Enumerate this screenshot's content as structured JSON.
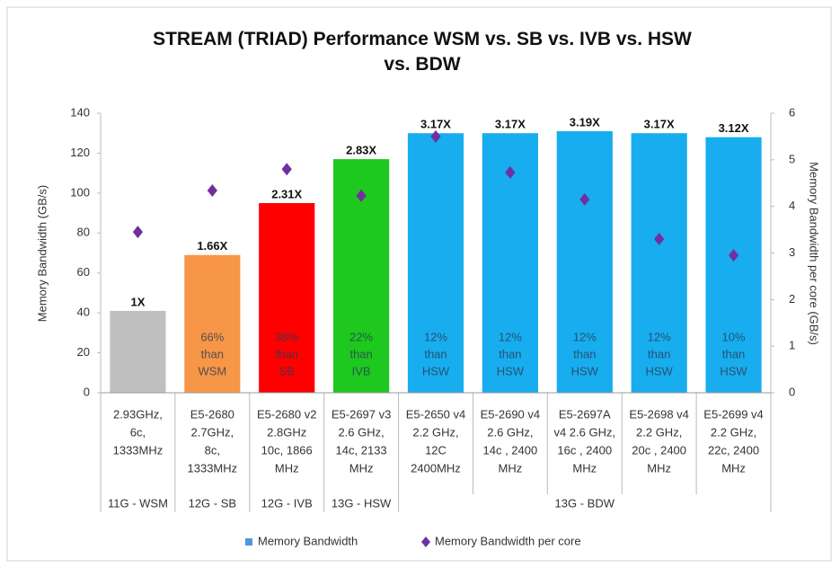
{
  "chart_data": {
    "type": "bar",
    "title": "STREAM (TRIAD) Performance WSM vs. SB vs. IVB vs. HSW vs. BDW",
    "y_label": "Memory Bandwidth (GB/s)",
    "y2_label": "Memory Bandwidth per core (GB/s)",
    "categories": [
      [
        "2.93GHz,",
        "6c,",
        "1333MHz"
      ],
      [
        "E5-2680",
        "2.7GHz,",
        "8c,",
        "1333MHz"
      ],
      [
        "E5-2680 v2",
        "2.8GHz",
        "10c, 1866",
        "MHz"
      ],
      [
        "E5-2697 v3",
        "2.6 GHz,",
        "14c, 2133",
        "MHz"
      ],
      [
        "E5-2650 v4",
        "2.2 GHz,",
        "12C",
        "2400MHz"
      ],
      [
        "E5-2690 v4",
        "2.6 GHz,",
        "14c , 2400",
        "MHz"
      ],
      [
        "E5-2697A",
        "v4 2.6 GHz,",
        "16c , 2400",
        "MHz"
      ],
      [
        "E5-2698 v4",
        "2.2 GHz,",
        "20c , 2400",
        "MHz"
      ],
      [
        "E5-2699 v4",
        "2.2 GHz,",
        "22c, 2400",
        "MHz"
      ]
    ],
    "groups": [
      "11G - WSM",
      "12G - SB",
      "12G - IVB",
      "13G - HSW",
      "13G - BDW",
      null,
      null,
      null,
      null
    ],
    "colors": [
      "#bfbfbf",
      "#f79646",
      "#ff0000",
      "#1ec81e",
      "#17adee",
      "#17adee",
      "#17adee",
      "#17adee",
      "#17adee"
    ],
    "series": [
      {
        "name": "Memory Bandwidth",
        "color": "#4f96d8",
        "type": "bar",
        "values": [
          41,
          69,
          95,
          117,
          130,
          130,
          131,
          130,
          128
        ]
      },
      {
        "name": "Memory Bandwidth per core",
        "color": "#7030a0",
        "type": "scatter",
        "axis": "y2",
        "values": [
          3.45,
          4.34,
          4.8,
          4.23,
          5.5,
          4.73,
          4.15,
          3.3,
          2.95
        ]
      }
    ],
    "bar_labels": [
      "1X",
      "1.66X",
      "2.31X",
      "2.83X",
      "3.17X",
      "3.17X",
      "3.19X",
      "3.17X",
      "3.12X"
    ],
    "bar_notes": [
      null,
      [
        "66%",
        "than",
        "WSM"
      ],
      [
        "38%",
        "than",
        "SB"
      ],
      [
        "22%",
        "than",
        "IVB"
      ],
      [
        "12%",
        "than",
        "HSW"
      ],
      [
        "12%",
        "than",
        "HSW"
      ],
      [
        "12%",
        "than",
        "HSW"
      ],
      [
        "12%",
        "than",
        "HSW"
      ],
      [
        "10%",
        "than",
        "HSW"
      ]
    ],
    "ylim": [
      0,
      140
    ],
    "yticks": [
      0,
      20,
      40,
      60,
      80,
      100,
      120,
      140
    ],
    "y2lim": [
      0,
      6
    ],
    "y2ticks": [
      0,
      1,
      2,
      3,
      4,
      5,
      6
    ],
    "grid": false,
    "legend": "bottom"
  }
}
